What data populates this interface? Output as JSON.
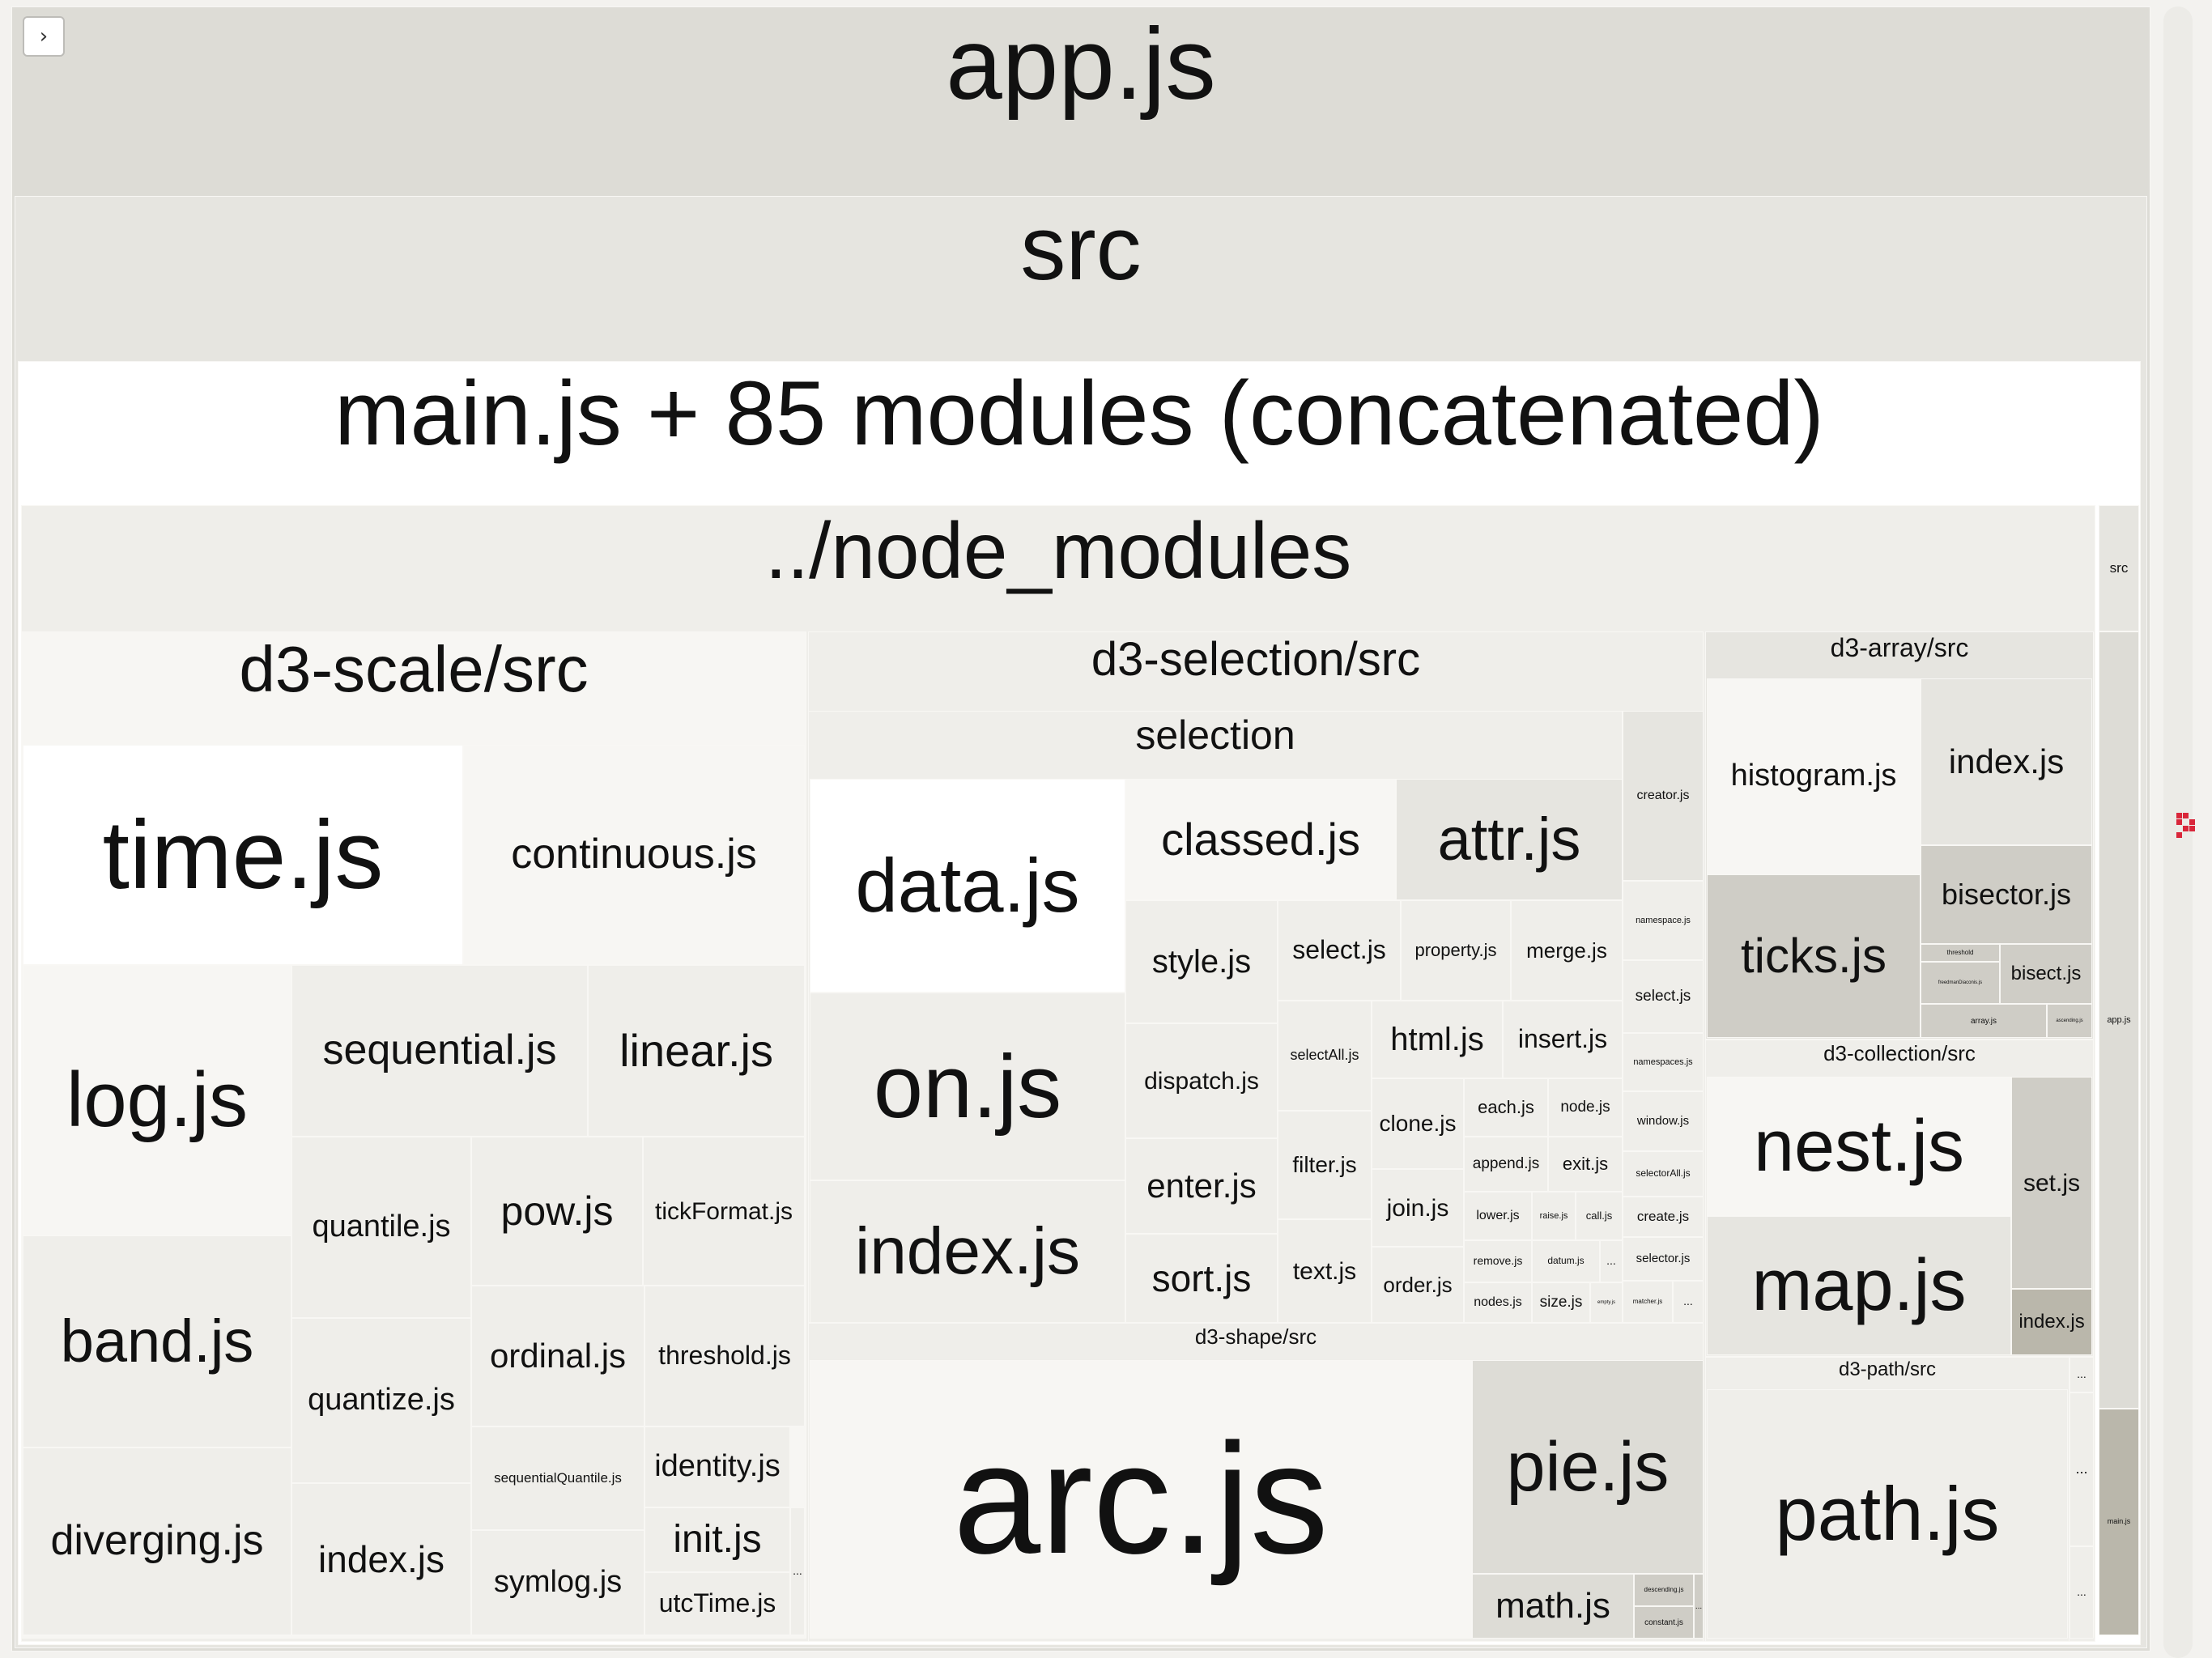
{
  "toggle_icon": "chevron-right-icon",
  "colors": {
    "white": "#ffffff",
    "lightest": "#f7f6f3",
    "light": "#efeeea",
    "mid": "#e6e5e0",
    "dark": "#dddcd6",
    "darker": "#cfcdc6",
    "darkest": "#bab7ab",
    "minimap": "#d9263a"
  },
  "treemap": {
    "root": "app.js",
    "src": "src",
    "bundle": "main.js + 85 modules (concatenated)",
    "node_modules": "../node_modules",
    "right_column": {
      "src": "src",
      "app": "app.js",
      "main": "main.js"
    },
    "d3_scale": {
      "title": "d3-scale/src",
      "files": [
        "time.js",
        "continuous.js",
        "log.js",
        "sequential.js",
        "linear.js",
        "quantile.js",
        "pow.js",
        "tickFormat.js",
        "band.js",
        "quantize.js",
        "ordinal.js",
        "threshold.js",
        "diverging.js",
        "index.js",
        "sequentialQuantile.js",
        "identity.js",
        "init.js",
        "symlog.js",
        "utcTime.js",
        "..."
      ]
    },
    "d3_selection": {
      "title": "d3-selection/src",
      "subtitle": "selection",
      "files": [
        "data.js",
        "classed.js",
        "attr.js",
        "style.js",
        "select.js",
        "property.js",
        "merge.js",
        "on.js",
        "dispatch.js",
        "selectAll.js",
        "html.js",
        "insert.js",
        "clone.js",
        "each.js",
        "node.js",
        "filter.js",
        "append.js",
        "exit.js",
        "enter.js",
        "join.js",
        "lower.js",
        "raise.js",
        "call.js",
        "index.js",
        "remove.js",
        "datum.js",
        "...",
        "text.js",
        "sort.js",
        "order.js",
        "nodes.js",
        "size.js",
        "empty.js"
      ],
      "side": [
        "creator.js",
        "namespace.js",
        "select.js",
        "namespaces.js",
        "window.js",
        "selectorAll.js",
        "create.js",
        "selector.js",
        "matcher.js",
        "..."
      ]
    },
    "d3_array": {
      "title": "d3-array/src",
      "files": [
        "histogram.js",
        "index.js",
        "bisector.js",
        "ticks.js",
        "threshold",
        "bisect.js",
        "freedmanDiaconis.js",
        "array.js",
        "ascending.js"
      ]
    },
    "d3_collection": {
      "title": "d3-collection/src",
      "files": [
        "nest.js",
        "set.js",
        "map.js",
        "index.js"
      ]
    },
    "d3_shape": {
      "title": "d3-shape/src",
      "files": [
        "arc.js",
        "pie.js",
        "math.js",
        "descending.js",
        "constant.js",
        "..."
      ]
    },
    "d3_path": {
      "title": "d3-path/src",
      "files": [
        "path.js"
      ]
    },
    "misc": [
      "...",
      "...",
      "..."
    ]
  }
}
